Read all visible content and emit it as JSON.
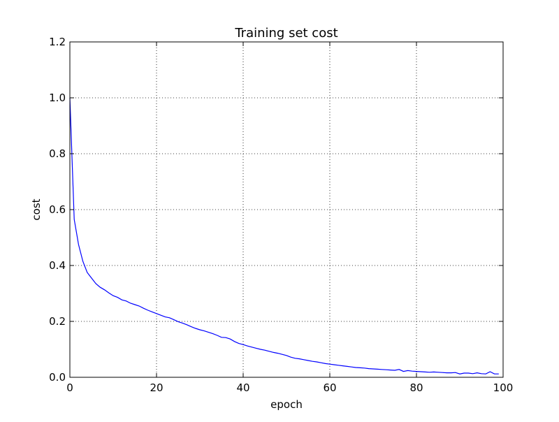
{
  "chart_data": {
    "type": "line",
    "title": "Training set cost",
    "xlabel": "epoch",
    "ylabel": "cost",
    "xlim": [
      0,
      100
    ],
    "ylim": [
      0,
      1.2
    ],
    "xticks": [
      0,
      20,
      40,
      60,
      80,
      100
    ],
    "yticks": [
      0.0,
      0.2,
      0.4,
      0.6,
      0.8,
      1.0,
      1.2
    ],
    "xtick_labels": [
      "0",
      "20",
      "40",
      "60",
      "80",
      "100"
    ],
    "ytick_labels": [
      "0.0",
      "0.2",
      "0.4",
      "0.6",
      "0.8",
      "1.0",
      "1.2"
    ],
    "grid": true,
    "line_color": "#0000ff",
    "series": [
      {
        "x": [
          0,
          1,
          2,
          3,
          4,
          5,
          6,
          7,
          8,
          9,
          10,
          11,
          12,
          13,
          14,
          15,
          16,
          17,
          18,
          19,
          20,
          21,
          22,
          23,
          24,
          25,
          26,
          27,
          28,
          29,
          30,
          31,
          32,
          33,
          34,
          35,
          36,
          37,
          38,
          39,
          40,
          41,
          42,
          43,
          44,
          45,
          46,
          47,
          48,
          49,
          50,
          51,
          52,
          53,
          54,
          55,
          56,
          57,
          58,
          59,
          60,
          61,
          62,
          63,
          64,
          65,
          66,
          67,
          68,
          69,
          70,
          71,
          72,
          73,
          74,
          75,
          76,
          77,
          78,
          79,
          80,
          81,
          82,
          83,
          84,
          85,
          86,
          87,
          88,
          89,
          90,
          91,
          92,
          93,
          94,
          95,
          96,
          97,
          98,
          99
        ],
        "y": [
          1.0,
          0.565,
          0.475,
          0.415,
          0.375,
          0.355,
          0.335,
          0.322,
          0.313,
          0.302,
          0.292,
          0.286,
          0.277,
          0.273,
          0.265,
          0.26,
          0.255,
          0.247,
          0.24,
          0.234,
          0.228,
          0.222,
          0.216,
          0.213,
          0.206,
          0.199,
          0.194,
          0.188,
          0.181,
          0.175,
          0.17,
          0.166,
          0.161,
          0.156,
          0.15,
          0.143,
          0.142,
          0.137,
          0.128,
          0.121,
          0.117,
          0.112,
          0.108,
          0.104,
          0.1,
          0.097,
          0.093,
          0.089,
          0.086,
          0.082,
          0.078,
          0.072,
          0.068,
          0.066,
          0.063,
          0.06,
          0.057,
          0.055,
          0.052,
          0.049,
          0.047,
          0.045,
          0.043,
          0.041,
          0.039,
          0.037,
          0.035,
          0.034,
          0.033,
          0.031,
          0.03,
          0.029,
          0.028,
          0.027,
          0.026,
          0.025,
          0.028,
          0.021,
          0.024,
          0.022,
          0.021,
          0.02,
          0.019,
          0.018,
          0.019,
          0.018,
          0.017,
          0.016,
          0.016,
          0.017,
          0.012,
          0.015,
          0.015,
          0.013,
          0.016,
          0.013,
          0.012,
          0.02,
          0.012,
          0.012
        ]
      }
    ]
  }
}
